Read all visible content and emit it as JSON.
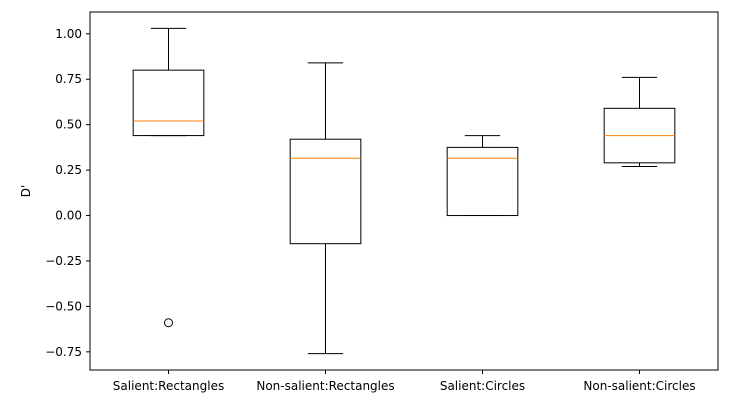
{
  "chart_data": {
    "type": "box",
    "title": "",
    "xlabel": "",
    "ylabel": "D'",
    "ylim": [
      -0.85,
      1.12
    ],
    "yticks": [
      1.0,
      0.75,
      0.5,
      0.25,
      0.0,
      -0.25,
      -0.5,
      -0.75
    ],
    "ytick_labels": [
      "1.00",
      "0.75",
      "0.50",
      "0.25",
      "0.00",
      "−0.25",
      "−0.50",
      "−0.75"
    ],
    "categories": [
      "Salient:Rectangles",
      "Non-salient:Rectangles",
      "Salient:Circles",
      "Non-salient:Circles"
    ],
    "boxes": [
      {
        "whisker_low": 0.44,
        "q1": 0.44,
        "median": 0.52,
        "q3": 0.8,
        "whisker_high": 1.03,
        "outliers": [
          -0.59
        ]
      },
      {
        "whisker_low": -0.76,
        "q1": -0.155,
        "median": 0.315,
        "q3": 0.42,
        "whisker_high": 0.84,
        "outliers": []
      },
      {
        "whisker_low": 0.0,
        "q1": 0.0,
        "median": 0.315,
        "q3": 0.375,
        "whisker_high": 0.44,
        "outliers": []
      },
      {
        "whisker_low": 0.27,
        "q1": 0.29,
        "median": 0.44,
        "q3": 0.59,
        "whisker_high": 0.76,
        "outliers": []
      }
    ],
    "colors": {
      "box": "#000000",
      "median": "#ff7f0e",
      "background": "#ffffff"
    },
    "grid": false,
    "legend": "none"
  }
}
